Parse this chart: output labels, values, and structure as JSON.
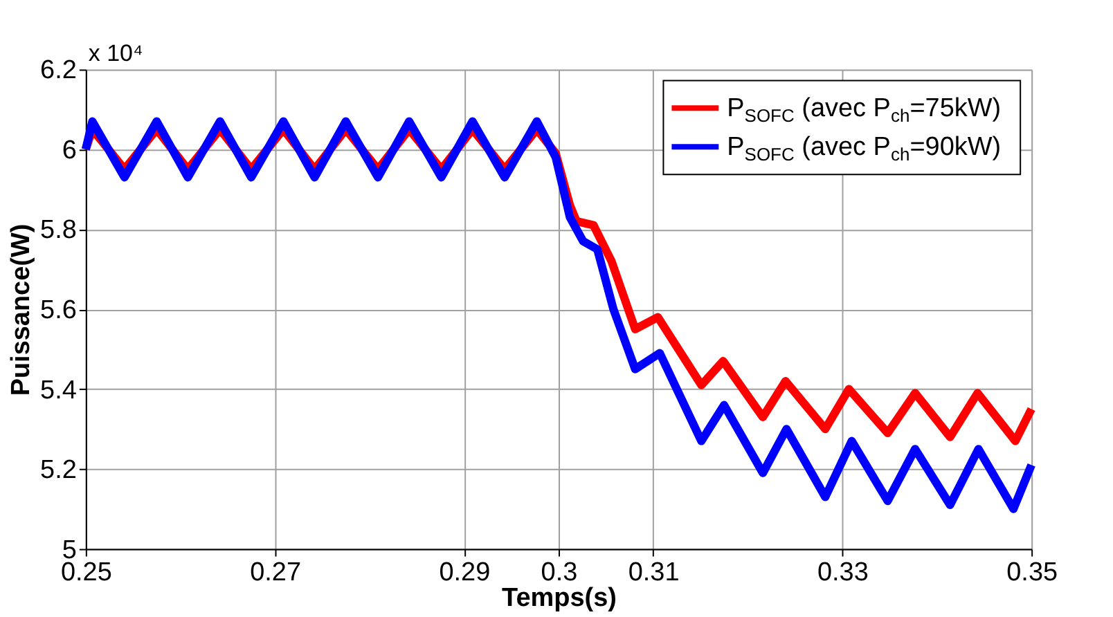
{
  "chart_data": {
    "type": "line",
    "xlabel": "Temps(s)",
    "ylabel": "Puissance(W)",
    "annotations": [
      "x 10⁴"
    ],
    "xlim": [
      0.25,
      0.35
    ],
    "xticks": [
      0.25,
      0.27,
      0.29,
      0.3,
      0.31,
      0.33,
      0.35
    ],
    "ylim": [
      5,
      6.2
    ],
    "yticks": [
      5,
      5.2,
      5.4,
      5.6,
      5.8,
      6,
      6.2
    ],
    "grid": true,
    "legend": "top right",
    "marker": "none",
    "line_style": "solid",
    "series": [
      {
        "name": "P$_{SOFC}$ (avec P$_{ch}$=75kW)",
        "color": "#ff0000",
        "x": [
          0.25,
          0.2507,
          0.2541,
          0.2575,
          0.2608,
          0.2642,
          0.2675,
          0.2709,
          0.2742,
          0.2775,
          0.2809,
          0.2842,
          0.2876,
          0.2909,
          0.2943,
          0.2977,
          0.2997,
          0.3012,
          0.3019,
          0.3037,
          0.3056,
          0.3081,
          0.3105,
          0.3151,
          0.3174,
          0.3216,
          0.324,
          0.3282,
          0.3307,
          0.3348,
          0.3377,
          0.3414,
          0.3443,
          0.3483,
          0.35
        ],
        "values": [
          6.0,
          6.05,
          5.95,
          6.05,
          5.95,
          6.05,
          5.95,
          6.05,
          5.95,
          6.05,
          5.95,
          6.05,
          5.95,
          6.05,
          5.95,
          6.05,
          5.99,
          5.86,
          5.82,
          5.81,
          5.72,
          5.55,
          5.58,
          5.41,
          5.47,
          5.33,
          5.42,
          5.3,
          5.4,
          5.29,
          5.39,
          5.28,
          5.39,
          5.27,
          5.35
        ]
      },
      {
        "name": "P$_{SOFC}$ (avec P$_{ch}$=90kW)",
        "color": "#0000ff",
        "x": [
          0.25,
          0.2507,
          0.2541,
          0.2575,
          0.2608,
          0.2642,
          0.2675,
          0.2709,
          0.2742,
          0.2775,
          0.2809,
          0.2842,
          0.2876,
          0.2909,
          0.2943,
          0.2977,
          0.2997,
          0.3012,
          0.3026,
          0.3041,
          0.3058,
          0.3081,
          0.3107,
          0.3151,
          0.3175,
          0.3216,
          0.3241,
          0.3282,
          0.331,
          0.3348,
          0.3377,
          0.3414,
          0.3444,
          0.3481,
          0.35
        ],
        "values": [
          6.0,
          6.07,
          5.93,
          6.07,
          5.93,
          6.07,
          5.93,
          6.07,
          5.93,
          6.07,
          5.93,
          6.07,
          5.93,
          6.07,
          5.93,
          6.07,
          5.98,
          5.83,
          5.77,
          5.75,
          5.6,
          5.45,
          5.49,
          5.27,
          5.36,
          5.19,
          5.3,
          5.13,
          5.27,
          5.12,
          5.25,
          5.11,
          5.25,
          5.1,
          5.21
        ]
      }
    ]
  }
}
